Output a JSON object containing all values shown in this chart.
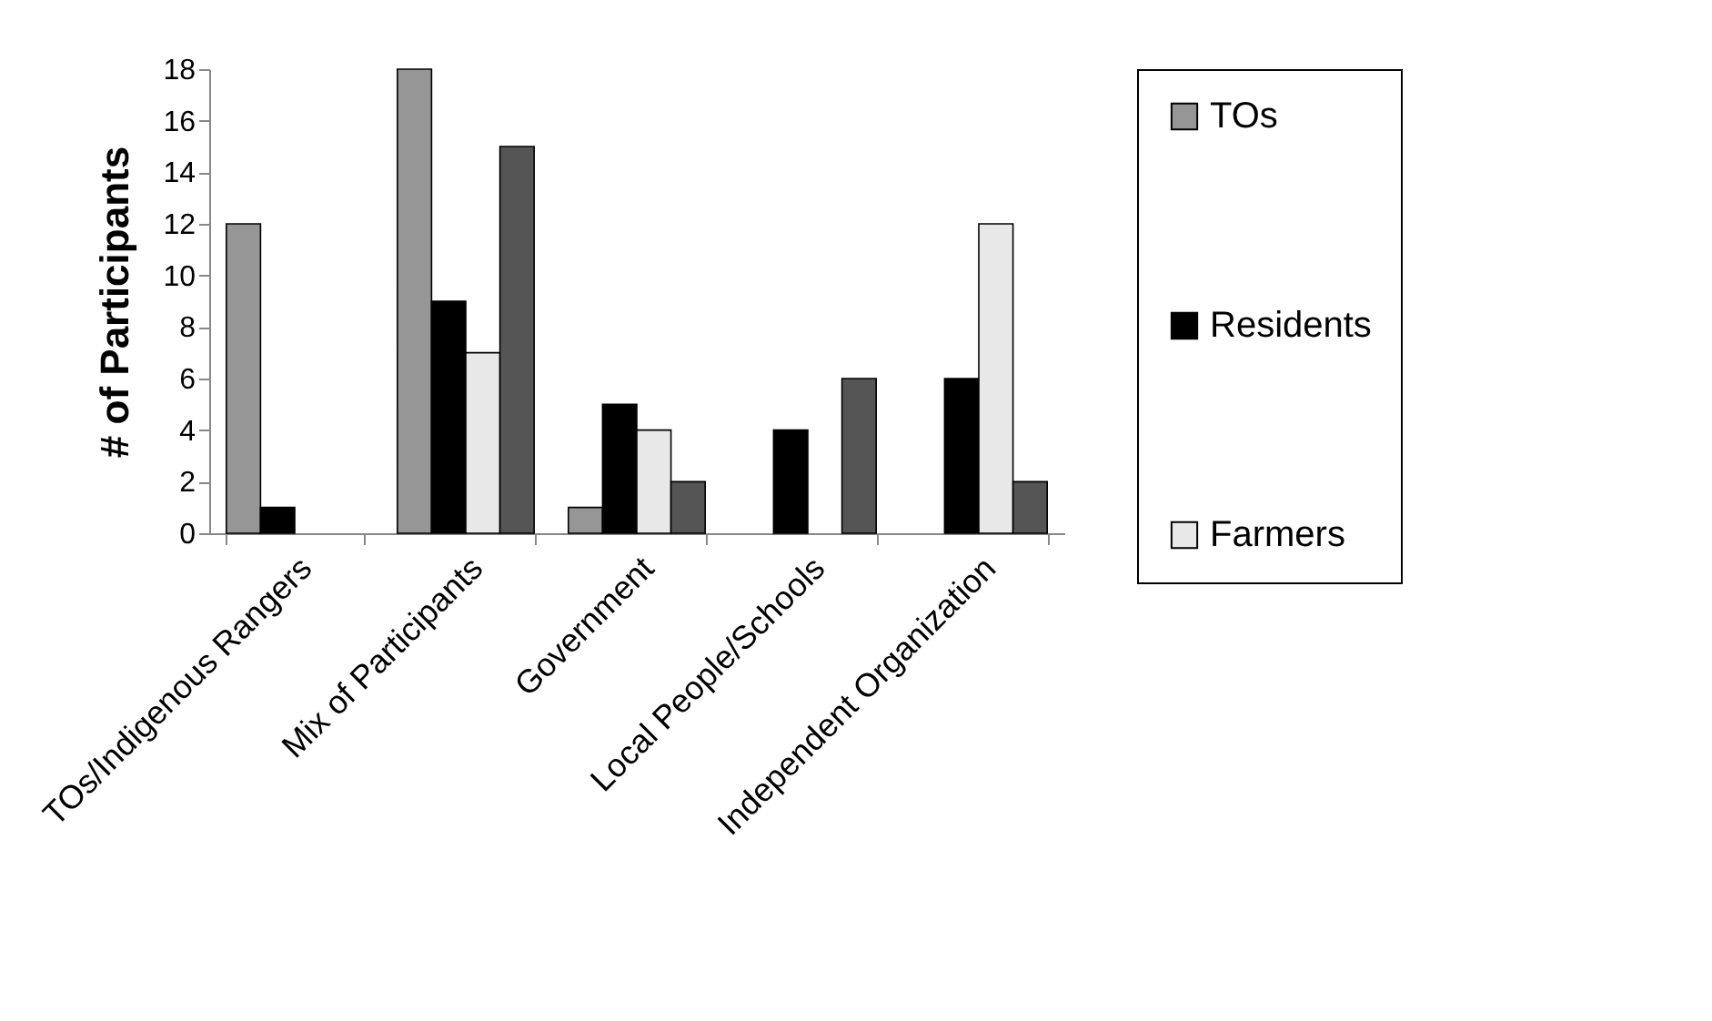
{
  "chart_data": {
    "type": "bar",
    "ylabel": "# of Participants",
    "categories": [
      "TOs/Indigenous Rangers",
      "Mix of Participants",
      "Government",
      "Local People/Schools",
      "Independent Organization"
    ],
    "series": [
      {
        "name": "TOs",
        "color": "#969696",
        "values": [
          12,
          18,
          1,
          null,
          null
        ]
      },
      {
        "name": "Residents",
        "color": "#000000",
        "values": [
          1,
          9,
          5,
          4,
          6
        ]
      },
      {
        "name": "Farmers",
        "color": "#e8e8e8",
        "values": [
          null,
          7,
          4,
          null,
          12
        ]
      },
      {
        "color": "#555555",
        "values": [
          null,
          15,
          2,
          6,
          2
        ]
      }
    ],
    "ylim": [
      0,
      18
    ],
    "yticks": [
      0,
      2,
      4,
      6,
      8,
      10,
      12,
      14,
      16,
      18
    ],
    "grid": false,
    "legend": "right"
  }
}
